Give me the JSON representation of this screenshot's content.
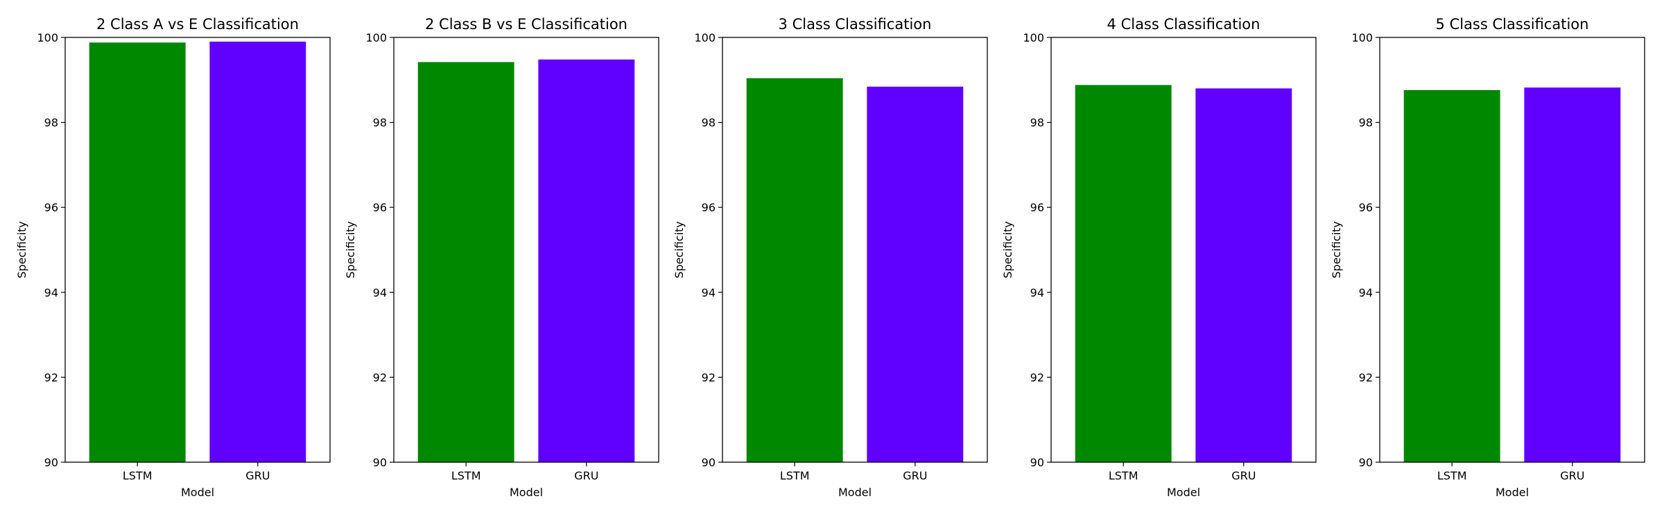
{
  "chart_data": [
    {
      "type": "bar",
      "title": "2 Class A vs E Classification",
      "xlabel": "Model",
      "ylabel": "Specificity",
      "categories": [
        "LSTM",
        "GRU"
      ],
      "values": [
        99.88,
        99.9
      ],
      "colors": [
        "#008800",
        "#6000ff"
      ],
      "ylim": [
        90,
        100
      ],
      "yticks": [
        "90",
        "92",
        "94",
        "96",
        "98",
        "100"
      ],
      "grid": false
    },
    {
      "type": "bar",
      "title": "2 Class B vs E Classification",
      "xlabel": "Model",
      "ylabel": "Specificity",
      "categories": [
        "LSTM",
        "GRU"
      ],
      "values": [
        99.42,
        99.48
      ],
      "colors": [
        "#008800",
        "#6000ff"
      ],
      "ylim": [
        90,
        100
      ],
      "yticks": [
        "90",
        "92",
        "94",
        "96",
        "98",
        "100"
      ],
      "grid": false
    },
    {
      "type": "bar",
      "title": "3 Class Classification",
      "xlabel": "Model",
      "ylabel": "Specificity",
      "categories": [
        "LSTM",
        "GRU"
      ],
      "values": [
        99.04,
        98.84
      ],
      "colors": [
        "#008800",
        "#6000ff"
      ],
      "ylim": [
        90,
        100
      ],
      "yticks": [
        "90",
        "92",
        "94",
        "96",
        "98",
        "100"
      ],
      "grid": false
    },
    {
      "type": "bar",
      "title": "4 Class Classification",
      "xlabel": "Model",
      "ylabel": "Specificity",
      "categories": [
        "LSTM",
        "GRU"
      ],
      "values": [
        98.88,
        98.8
      ],
      "colors": [
        "#008800",
        "#6000ff"
      ],
      "ylim": [
        90,
        100
      ],
      "yticks": [
        "90",
        "92",
        "94",
        "96",
        "98",
        "100"
      ],
      "grid": false
    },
    {
      "type": "bar",
      "title": "5 Class Classification",
      "xlabel": "Model",
      "ylabel": "Specificity",
      "categories": [
        "LSTM",
        "GRU"
      ],
      "values": [
        98.76,
        98.82
      ],
      "colors": [
        "#008800",
        "#6000ff"
      ],
      "ylim": [
        90,
        100
      ],
      "yticks": [
        "90",
        "92",
        "94",
        "96",
        "98",
        "100"
      ],
      "grid": false
    }
  ]
}
